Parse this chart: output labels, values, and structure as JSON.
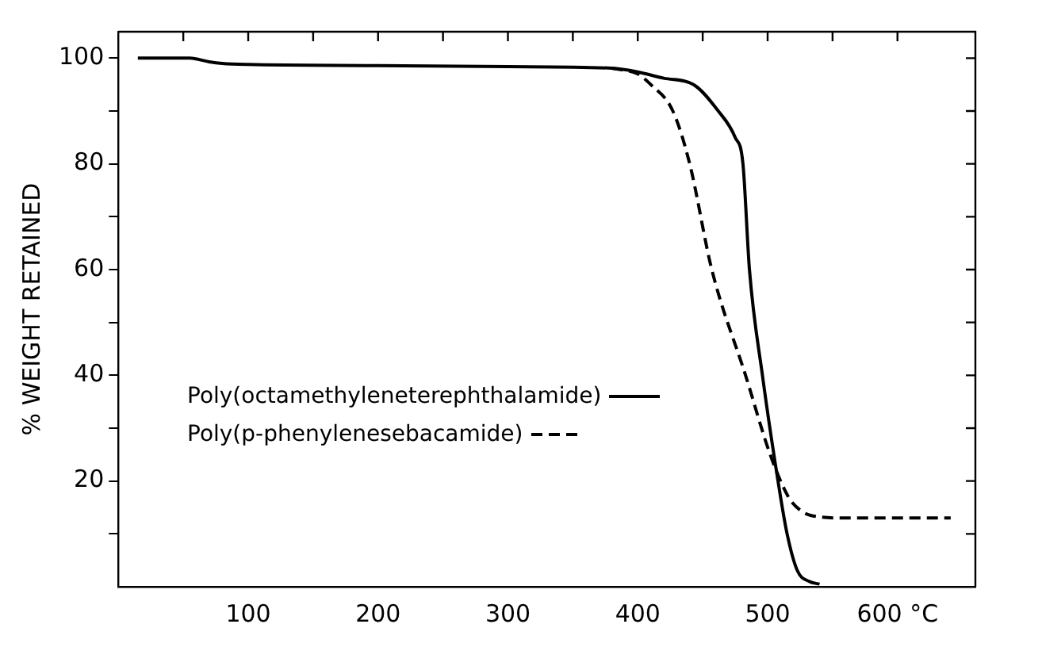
{
  "chart_data": {
    "type": "line",
    "ylabel": "% WEIGHT RETAINED",
    "xlim": [
      0,
      660
    ],
    "ylim": [
      0,
      105
    ],
    "xticks": [
      {
        "value": 50,
        "label": null
      },
      100,
      {
        "value": 150,
        "label": null
      },
      200,
      {
        "value": 250,
        "label": null
      },
      300,
      {
        "value": 350,
        "label": null
      },
      400,
      {
        "value": 450,
        "label": null
      },
      500,
      {
        "value": 550,
        "label": null
      },
      {
        "value": 600,
        "label": "600 °C"
      }
    ],
    "yticks": [
      {
        "value": 10,
        "label": null
      },
      20,
      {
        "value": 30,
        "label": null
      },
      40,
      {
        "value": 50,
        "label": null
      },
      60,
      {
        "value": 70,
        "label": null
      },
      80,
      {
        "value": 90,
        "label": null
      },
      100
    ],
    "grid": false,
    "legend": "left",
    "marker": "none",
    "series": [
      {
        "name": "Poly(octamethyleneterephthalamide)",
        "color": "#000000",
        "line_style": "solid",
        "x": [
          15,
          55,
          70,
          80,
          100,
          200,
          300,
          380,
          400,
          420,
          443,
          462,
          475,
          481,
          486,
          496,
          508,
          515,
          523,
          532,
          540
        ],
        "values": [
          100,
          100,
          99.3,
          99,
          98.8,
          98.6,
          98.4,
          98.1,
          97.4,
          96.2,
          95,
          90,
          85,
          80,
          60,
          40,
          20,
          10,
          3,
          1,
          0.5
        ]
      },
      {
        "name": "Poly(p-phenylenesebacamide)",
        "color": "#000000",
        "line_style": "dashed",
        "x": [
          380,
          400,
          410,
          427,
          440,
          457,
          483,
          502,
          516,
          525,
          533,
          560,
          600,
          641
        ],
        "values": [
          98.1,
          97,
          95,
          90,
          80,
          60,
          40,
          25,
          17,
          14.5,
          13.5,
          13,
          13,
          13
        ]
      }
    ]
  }
}
